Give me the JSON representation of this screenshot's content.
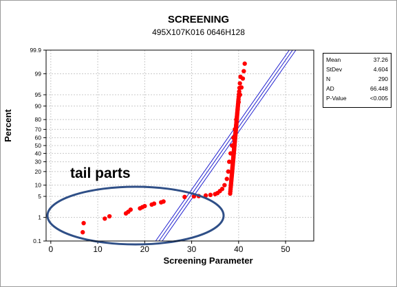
{
  "chart_data": {
    "type": "scatter",
    "title": "SCREENING",
    "subtitle": "495X107K016   0646H128",
    "xlabel": "Screening Parameter",
    "ylabel": "Percent",
    "xlim": [
      -1,
      56
    ],
    "x_ticks": [
      0,
      10,
      20,
      30,
      40,
      50
    ],
    "y_scale": "normal-probability",
    "y_ticks": [
      0.1,
      1,
      5,
      10,
      20,
      30,
      40,
      50,
      60,
      70,
      80,
      90,
      95,
      99,
      99.9
    ],
    "grid": true,
    "legend": {
      "position": "right",
      "rows": [
        {
          "label": "Mean",
          "value": "37.26"
        },
        {
          "label": "StDev",
          "value": "4.604"
        },
        {
          "label": "N",
          "value": "290"
        },
        {
          "label": "AD",
          "value": "66.448"
        },
        {
          "label": "P-Value",
          "value": "<0.005"
        }
      ]
    },
    "series": [
      {
        "color": "#ff0000",
        "points": [
          [
            6.8,
            0.25
          ],
          [
            7.0,
            0.6
          ],
          [
            11.5,
            0.9
          ],
          [
            12.5,
            1.1
          ],
          [
            16.0,
            1.4
          ],
          [
            16.5,
            1.6
          ],
          [
            17.0,
            1.9
          ],
          [
            19.0,
            2.1
          ],
          [
            19.5,
            2.3
          ],
          [
            20.0,
            2.5
          ],
          [
            21.5,
            2.8
          ],
          [
            22.0,
            3.0
          ],
          [
            23.5,
            3.3
          ],
          [
            24.0,
            3.5
          ],
          [
            28.5,
            4.8
          ],
          [
            30.5,
            5.0
          ],
          [
            31.5,
            5.1
          ],
          [
            33.0,
            5.3
          ],
          [
            34.0,
            5.5
          ],
          [
            35.0,
            5.8
          ],
          [
            35.5,
            6.2
          ],
          [
            36.0,
            7.0
          ],
          [
            36.5,
            8.0
          ],
          [
            37.0,
            10
          ],
          [
            37.5,
            14
          ],
          [
            37.8,
            20
          ],
          [
            38.0,
            30
          ],
          [
            38.3,
            40
          ],
          [
            38.6,
            50
          ],
          [
            38.9,
            60
          ],
          [
            39.2,
            70
          ],
          [
            39.5,
            80
          ],
          [
            39.8,
            88
          ],
          [
            40.0,
            92
          ],
          [
            40.3,
            95
          ],
          [
            40.6,
            97
          ],
          [
            40.9,
            98.5
          ],
          [
            41.1,
            99.2
          ],
          [
            41.3,
            99.6
          ]
        ]
      }
    ],
    "fit": {
      "color": "#1f1fcf",
      "mean": 37.26,
      "stdev": 4.604
    },
    "annotation": "tail parts"
  }
}
